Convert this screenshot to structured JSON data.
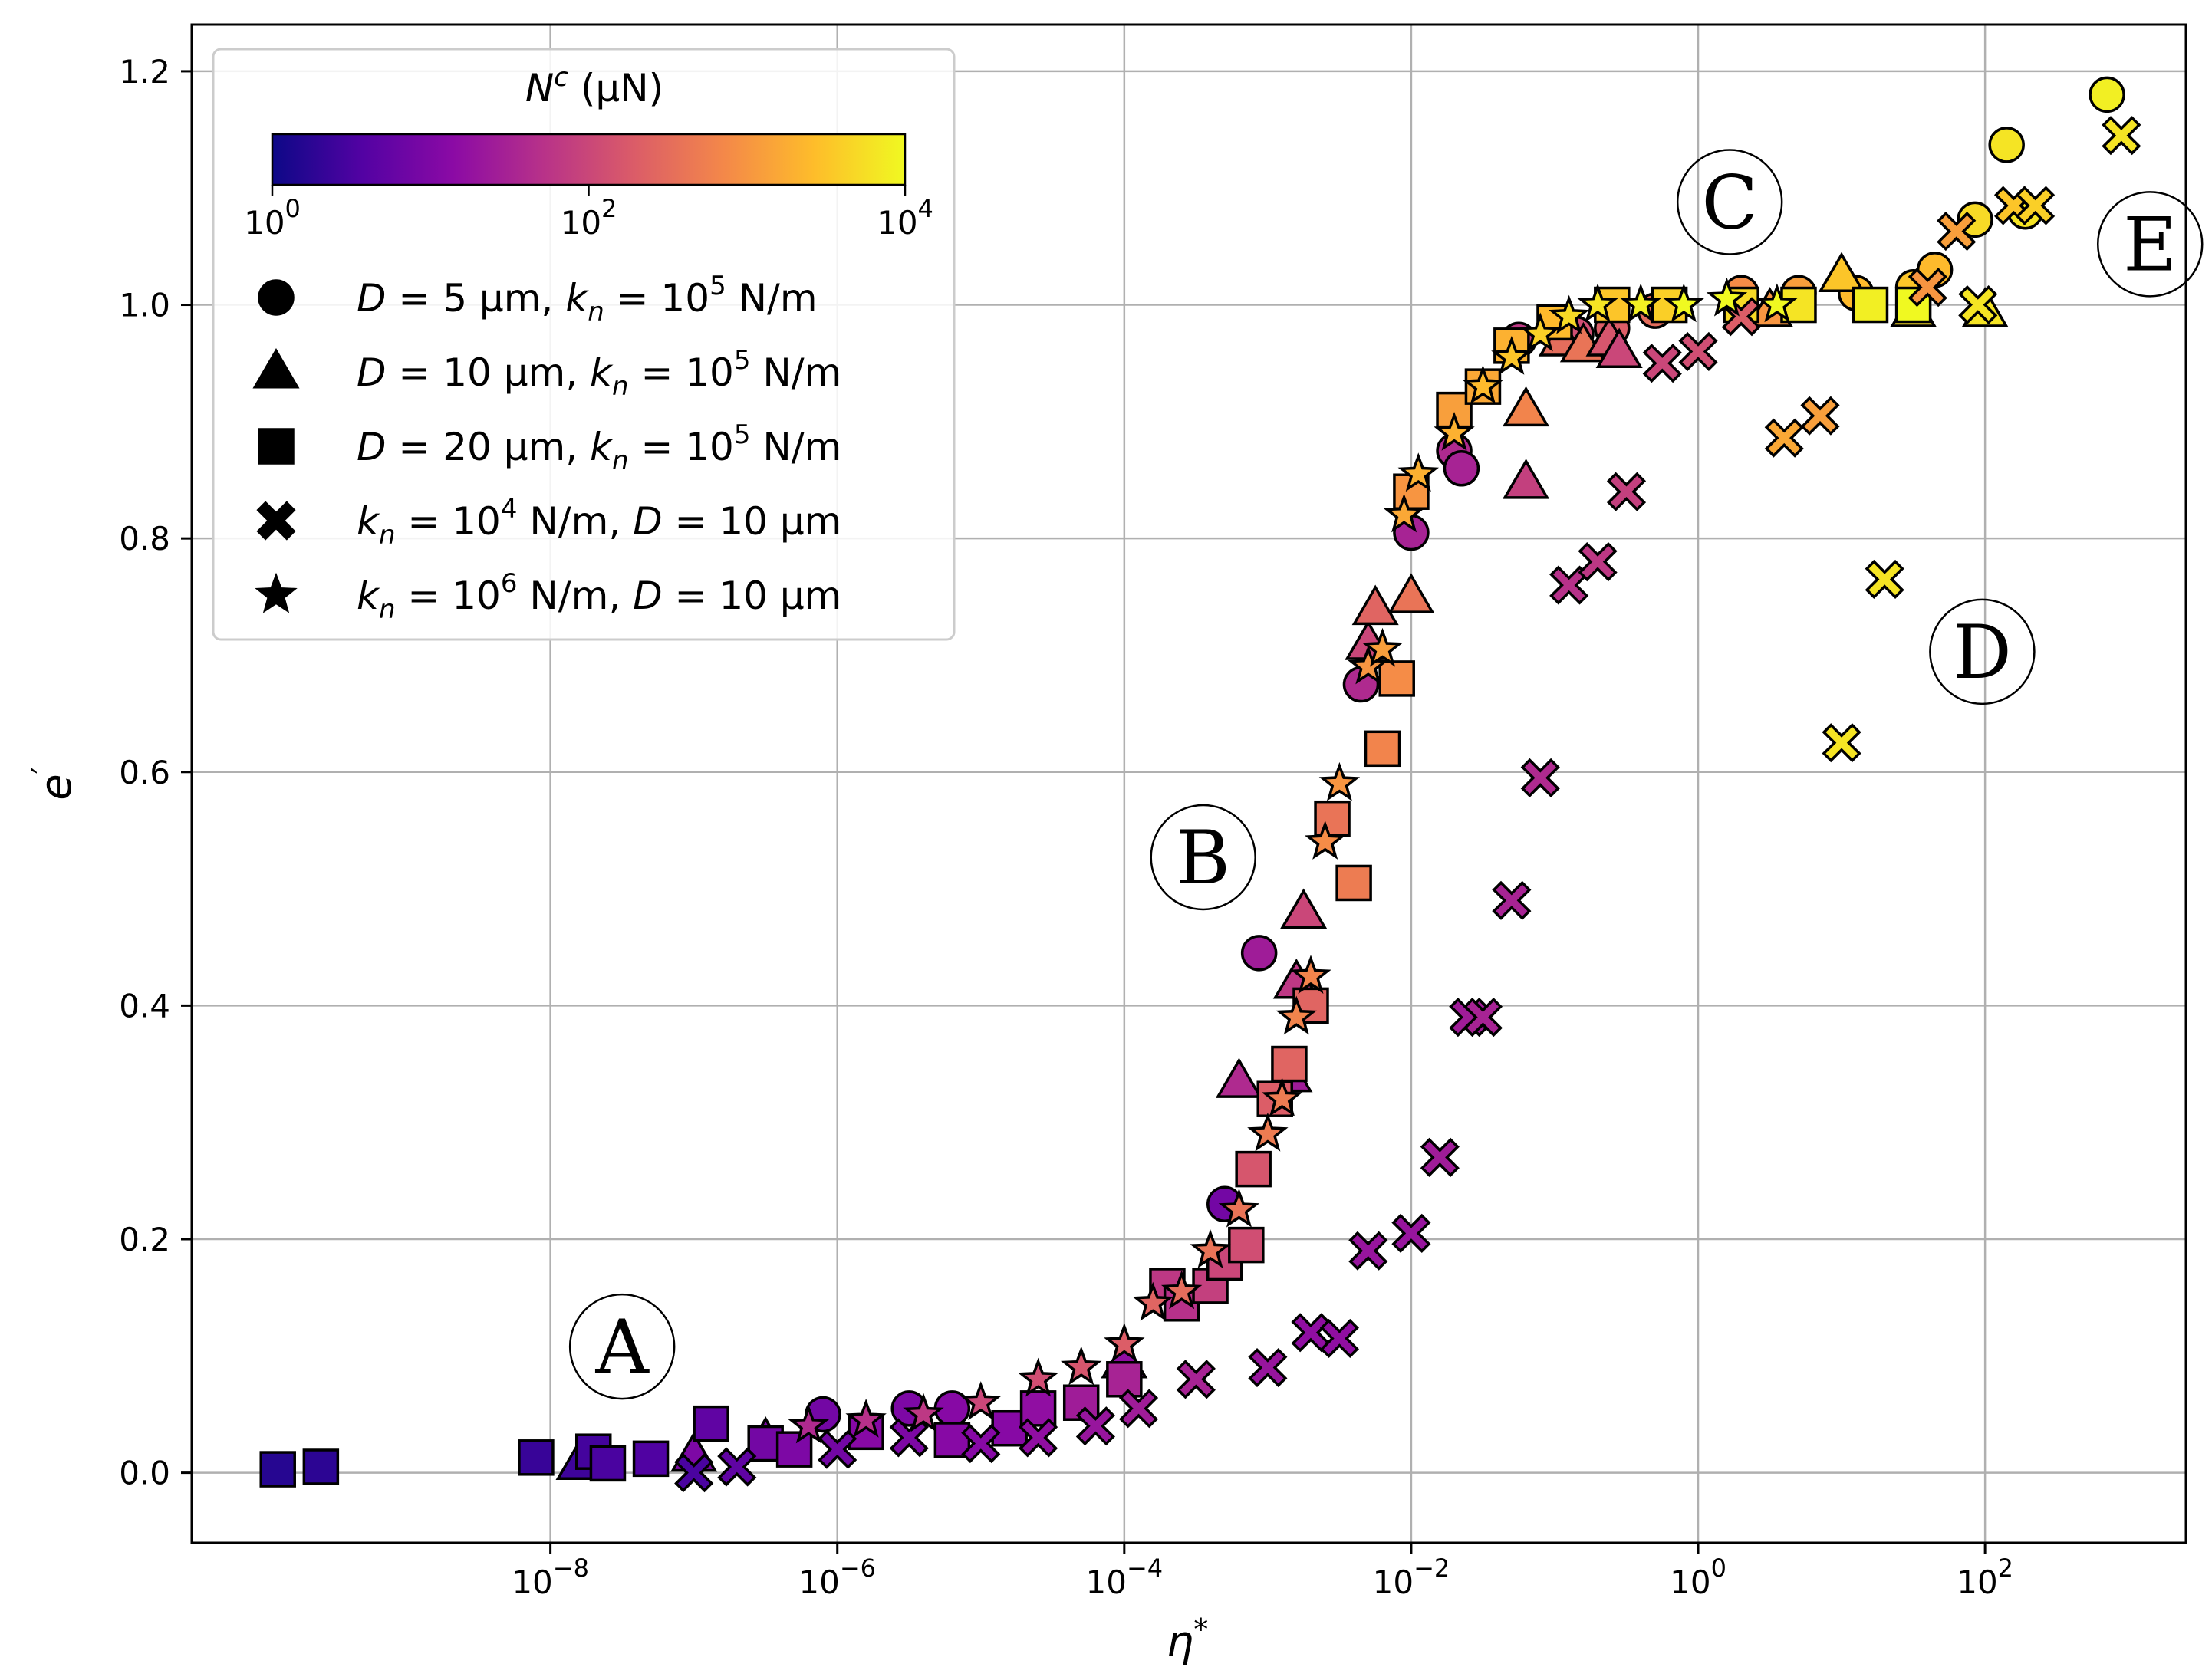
{
  "chart_data": {
    "type": "scatter",
    "title": "",
    "xlabel": "η",
    "xlabel_sup": "*",
    "ylabel": "e",
    "ylabel_sup": "′",
    "xscale": "log",
    "xlim_exp": [
      -10.5,
      3.4
    ],
    "ylim": [
      -0.06,
      1.24
    ],
    "xticks_exp": [
      -8,
      -6,
      -4,
      -2,
      0,
      2
    ],
    "yticks": [
      "0.0",
      "0.2",
      "0.4",
      "0.6",
      "0.8",
      "1.0",
      "1.2"
    ],
    "grid": true,
    "colormap": [
      "#0d0887",
      "#5302a3",
      "#8b0aa5",
      "#b83289",
      "#db5c68",
      "#f48849",
      "#febd2a",
      "#f0f921"
    ],
    "colorbar": {
      "label": "N",
      "label_sup": "c",
      "label_unit": " (μN)",
      "tick_exps": [
        0,
        2,
        4
      ],
      "range_exp": [
        0,
        4
      ],
      "placement": "top-left"
    },
    "legend": {
      "placement": "top-left",
      "entries": [
        {
          "marker": "circle",
          "p1": "D",
          "p2": " = 5 μm, ",
          "p3": "k",
          "p3sub": "n",
          "p4": " = 10",
          "sup": "5",
          "p5": " N/m"
        },
        {
          "marker": "triangle",
          "p1": "D",
          "p2": " = 10 μm, ",
          "p3": "k",
          "p3sub": "n",
          "p4": " = 10",
          "sup": "5",
          "p5": " N/m"
        },
        {
          "marker": "square",
          "p1": "D",
          "p2": " = 20 μm, ",
          "p3": "k",
          "p3sub": "n",
          "p4": " = 10",
          "sup": "5",
          "p5": " N/m"
        },
        {
          "marker": "x",
          "p1": "k",
          "p1sub": "n",
          "p2": " = 10",
          "sup": "4",
          "p3": " N/m, ",
          "p4": "D",
          "p5": " = 10 μm"
        },
        {
          "marker": "star",
          "p1": "k",
          "p1sub": "n",
          "p2": " = 10",
          "sup": "6",
          "p3": " N/m, ",
          "p4": "D",
          "p5": " = 10 μm"
        }
      ]
    },
    "regions": [
      {
        "label": "A",
        "x_exp": -7.5,
        "y": 0.108
      },
      {
        "label": "B",
        "x_exp": -3.45,
        "y": 0.527
      },
      {
        "label": "C",
        "x_exp": 0.22,
        "y": 1.088
      },
      {
        "label": "D",
        "x_exp": 1.98,
        "y": 0.703
      },
      {
        "label": "E",
        "x_exp": 3.15,
        "y": 1.052
      }
    ],
    "series": [
      {
        "marker": "circle",
        "points": [
          [
            -6.1,
            0.05,
            0.9
          ],
          [
            -5.5,
            0.055,
            1.0
          ],
          [
            -5.2,
            0.055,
            1.1
          ],
          [
            -3.3,
            0.23,
            0.9
          ],
          [
            -3.06,
            0.445,
            1.4
          ],
          [
            -2.35,
            0.675,
            1.6
          ],
          [
            -2.0,
            0.805,
            1.5
          ],
          [
            -1.7,
            0.875,
            1.6
          ],
          [
            -1.65,
            0.86,
            1.5
          ],
          [
            -1.25,
            0.97,
            1.8
          ],
          [
            -0.85,
            0.975,
            2.1
          ],
          [
            -0.6,
            0.98,
            2.3
          ],
          [
            -0.3,
            0.995,
            2.5
          ],
          [
            0.3,
            1.01,
            2.9
          ],
          [
            0.7,
            1.01,
            3.1
          ],
          [
            1.1,
            1.01,
            3.4
          ],
          [
            1.5,
            1.015,
            3.5
          ],
          [
            1.65,
            1.03,
            3.4
          ],
          [
            1.93,
            1.073,
            3.7
          ],
          [
            2.15,
            1.137,
            3.8
          ],
          [
            2.28,
            1.08,
            3.8
          ],
          [
            2.85,
            1.18,
            3.9
          ]
        ]
      },
      {
        "marker": "triangle",
        "points": [
          [
            -7.8,
            0.008,
            0.4
          ],
          [
            -7.0,
            0.015,
            1.0
          ],
          [
            -6.5,
            0.028,
            1.0
          ],
          [
            -4.0,
            0.095,
            1.2
          ],
          [
            -3.2,
            0.335,
            1.6
          ],
          [
            -2.85,
            0.34,
            1.4
          ],
          [
            -2.8,
            0.42,
            1.8
          ],
          [
            -2.75,
            0.48,
            2.0
          ],
          [
            -2.3,
            0.71,
            2.0
          ],
          [
            -2.25,
            0.74,
            2.4
          ],
          [
            -2.0,
            0.75,
            2.6
          ],
          [
            -1.2,
            0.91,
            2.8
          ],
          [
            -0.95,
            0.97,
            2.5
          ],
          [
            -0.8,
            0.965,
            2.6
          ],
          [
            -0.62,
            0.97,
            2.2
          ],
          [
            -0.55,
            0.96,
            2.0
          ],
          [
            -1.2,
            0.848,
            1.9
          ],
          [
            0.5,
            0.995,
            3.0
          ],
          [
            1.0,
            1.025,
            3.5
          ],
          [
            1.5,
            0.995,
            3.7
          ],
          [
            2.0,
            0.995,
            3.8
          ]
        ]
      },
      {
        "marker": "square",
        "points": [
          [
            -9.9,
            0.003,
            0.2
          ],
          [
            -9.6,
            0.005,
            0.25
          ],
          [
            -8.1,
            0.013,
            0.35
          ],
          [
            -7.7,
            0.018,
            0.45
          ],
          [
            -7.6,
            0.008,
            0.5
          ],
          [
            -7.3,
            0.012,
            0.55
          ],
          [
            -6.88,
            0.042,
            0.7
          ],
          [
            -6.5,
            0.025,
            0.9
          ],
          [
            -6.3,
            0.02,
            1.0
          ],
          [
            -5.8,
            0.035,
            1.1
          ],
          [
            -5.2,
            0.028,
            1.1
          ],
          [
            -4.8,
            0.038,
            1.1
          ],
          [
            -4.6,
            0.055,
            1.2
          ],
          [
            -4.3,
            0.06,
            1.4
          ],
          [
            -4.0,
            0.08,
            1.5
          ],
          [
            -3.7,
            0.16,
            1.8
          ],
          [
            -3.6,
            0.145,
            1.7
          ],
          [
            -3.4,
            0.16,
            1.9
          ],
          [
            -3.3,
            0.18,
            2.0
          ],
          [
            -3.15,
            0.195,
            2.1
          ],
          [
            -3.1,
            0.26,
            2.2
          ],
          [
            -2.95,
            0.32,
            2.3
          ],
          [
            -2.85,
            0.35,
            2.4
          ],
          [
            -2.7,
            0.4,
            2.4
          ],
          [
            -2.55,
            0.56,
            2.6
          ],
          [
            -2.4,
            0.505,
            2.7
          ],
          [
            -2.2,
            0.62,
            2.8
          ],
          [
            -2.1,
            0.68,
            2.9
          ],
          [
            -2.0,
            0.84,
            3.0
          ],
          [
            -1.7,
            0.91,
            3.1
          ],
          [
            -1.5,
            0.93,
            3.2
          ],
          [
            -1.3,
            0.965,
            3.3
          ],
          [
            -1.0,
            0.985,
            3.4
          ],
          [
            -0.6,
            1.0,
            3.5
          ],
          [
            -0.2,
            1.0,
            3.6
          ],
          [
            0.3,
            1.0,
            3.7
          ],
          [
            0.7,
            1.0,
            3.8
          ],
          [
            1.2,
            1.0,
            3.9
          ],
          [
            1.5,
            1.0,
            4.0
          ]
        ]
      },
      {
        "marker": "x",
        "points": [
          [
            -7.0,
            0.0,
            0.5
          ],
          [
            -6.7,
            0.005,
            0.7
          ],
          [
            -6.0,
            0.02,
            0.9
          ],
          [
            -5.5,
            0.03,
            1.0
          ],
          [
            -5.0,
            0.025,
            1.1
          ],
          [
            -4.6,
            0.03,
            1.2
          ],
          [
            -4.2,
            0.04,
            1.3
          ],
          [
            -3.9,
            0.055,
            1.4
          ],
          [
            -3.5,
            0.08,
            1.5
          ],
          [
            -3.0,
            0.09,
            1.3
          ],
          [
            -2.7,
            0.12,
            1.2
          ],
          [
            -2.5,
            0.115,
            1.2
          ],
          [
            -2.3,
            0.19,
            1.3
          ],
          [
            -2.0,
            0.205,
            1.3
          ],
          [
            -1.8,
            0.27,
            1.4
          ],
          [
            -1.6,
            0.39,
            1.4
          ],
          [
            -1.5,
            0.39,
            1.5
          ],
          [
            -1.3,
            0.49,
            1.5
          ],
          [
            -1.1,
            0.595,
            1.6
          ],
          [
            -0.9,
            0.76,
            1.7
          ],
          [
            -0.7,
            0.78,
            1.8
          ],
          [
            -0.5,
            0.84,
            1.9
          ],
          [
            -0.25,
            0.95,
            2.0
          ],
          [
            0.0,
            0.96,
            2.1
          ],
          [
            0.3,
            0.99,
            2.3
          ],
          [
            0.6,
            0.886,
            3.2
          ],
          [
            0.85,
            0.905,
            3.1
          ],
          [
            1.0,
            0.625,
            3.8
          ],
          [
            1.3,
            0.765,
            3.8
          ],
          [
            1.6,
            1.015,
            3.0
          ],
          [
            1.8,
            1.063,
            3.1
          ],
          [
            1.95,
            1.0,
            3.8
          ],
          [
            2.2,
            1.085,
            3.5
          ],
          [
            2.35,
            1.085,
            3.6
          ],
          [
            2.95,
            1.145,
            3.8
          ]
        ]
      },
      {
        "marker": "star",
        "points": [
          [
            -6.2,
            0.04,
            1.6
          ],
          [
            -5.8,
            0.045,
            1.7
          ],
          [
            -5.4,
            0.05,
            1.8
          ],
          [
            -5.0,
            0.06,
            2.0
          ],
          [
            -4.6,
            0.08,
            2.1
          ],
          [
            -4.3,
            0.09,
            2.2
          ],
          [
            -4.0,
            0.11,
            2.3
          ],
          [
            -3.8,
            0.145,
            2.4
          ],
          [
            -3.6,
            0.155,
            2.5
          ],
          [
            -3.4,
            0.19,
            2.6
          ],
          [
            -3.2,
            0.225,
            2.6
          ],
          [
            -3.0,
            0.29,
            2.7
          ],
          [
            -2.9,
            0.32,
            2.7
          ],
          [
            -2.8,
            0.39,
            2.8
          ],
          [
            -2.7,
            0.425,
            2.8
          ],
          [
            -2.6,
            0.54,
            2.9
          ],
          [
            -2.5,
            0.59,
            3.0
          ],
          [
            -2.3,
            0.69,
            3.0
          ],
          [
            -2.2,
            0.705,
            3.1
          ],
          [
            -2.05,
            0.82,
            3.2
          ],
          [
            -1.95,
            0.855,
            3.3
          ],
          [
            -1.7,
            0.89,
            3.3
          ],
          [
            -1.5,
            0.93,
            3.4
          ],
          [
            -1.3,
            0.955,
            3.5
          ],
          [
            -1.1,
            0.975,
            3.6
          ],
          [
            -0.9,
            0.99,
            3.7
          ],
          [
            -0.7,
            1.0,
            3.8
          ],
          [
            -0.4,
            1.0,
            3.9
          ],
          [
            -0.1,
            1.0,
            4.0
          ],
          [
            0.2,
            1.005,
            4.0
          ],
          [
            0.55,
            1.0,
            4.0
          ]
        ]
      }
    ]
  }
}
